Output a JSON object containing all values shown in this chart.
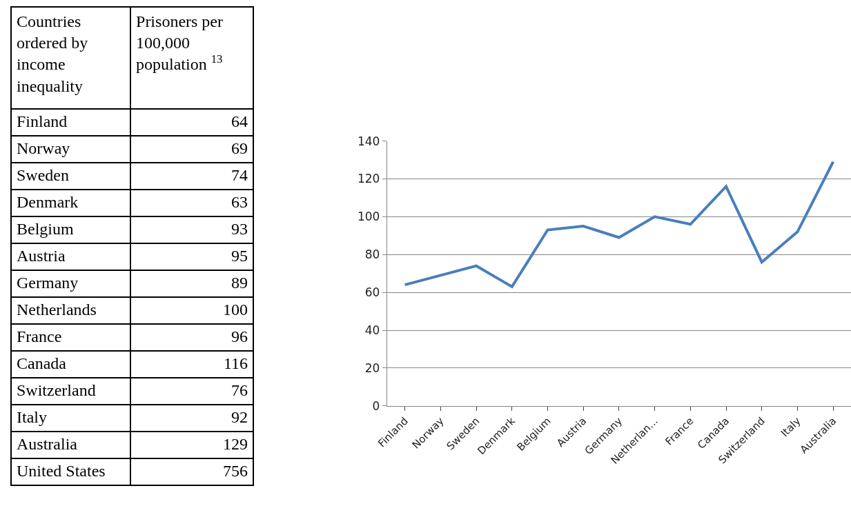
{
  "chart_data": [
    {
      "type": "other",
      "xlabel": "Countries ordered by income inequality",
      "ylabel": "Prisoners per 100,000 population $^{13}$",
      "data_labels": true,
      "categories": [
        "Finland",
        "Norway",
        "Sweden",
        "Denmark",
        "Belgium",
        "Austria",
        "Germany",
        "Netherlands",
        "France",
        "Canada",
        "Switzerland",
        "Italy",
        "Australia",
        "United States"
      ],
      "values": [
        64,
        69,
        74,
        63,
        93,
        95,
        89,
        100,
        96,
        116,
        76,
        92,
        129,
        756
      ]
    },
    {
      "type": "line",
      "categories": [
        "Finland",
        "Norway",
        "Sweden",
        "Denmark",
        "Belgium",
        "Austria",
        "Germany",
        "Netherlan...",
        "France",
        "Canada",
        "Switzerland",
        "Italy",
        "Australia"
      ],
      "series": [
        {
          "color": "#4a7ebb",
          "values": [
            64,
            69,
            74,
            63,
            93,
            95,
            89,
            100,
            96,
            116,
            76,
            92,
            129
          ]
        }
      ],
      "ylim": [
        0,
        140
      ],
      "yticks": [
        0,
        20,
        40,
        60,
        80,
        100,
        120,
        140
      ],
      "grid": "y",
      "marker": "none",
      "line_style": "solid"
    }
  ]
}
